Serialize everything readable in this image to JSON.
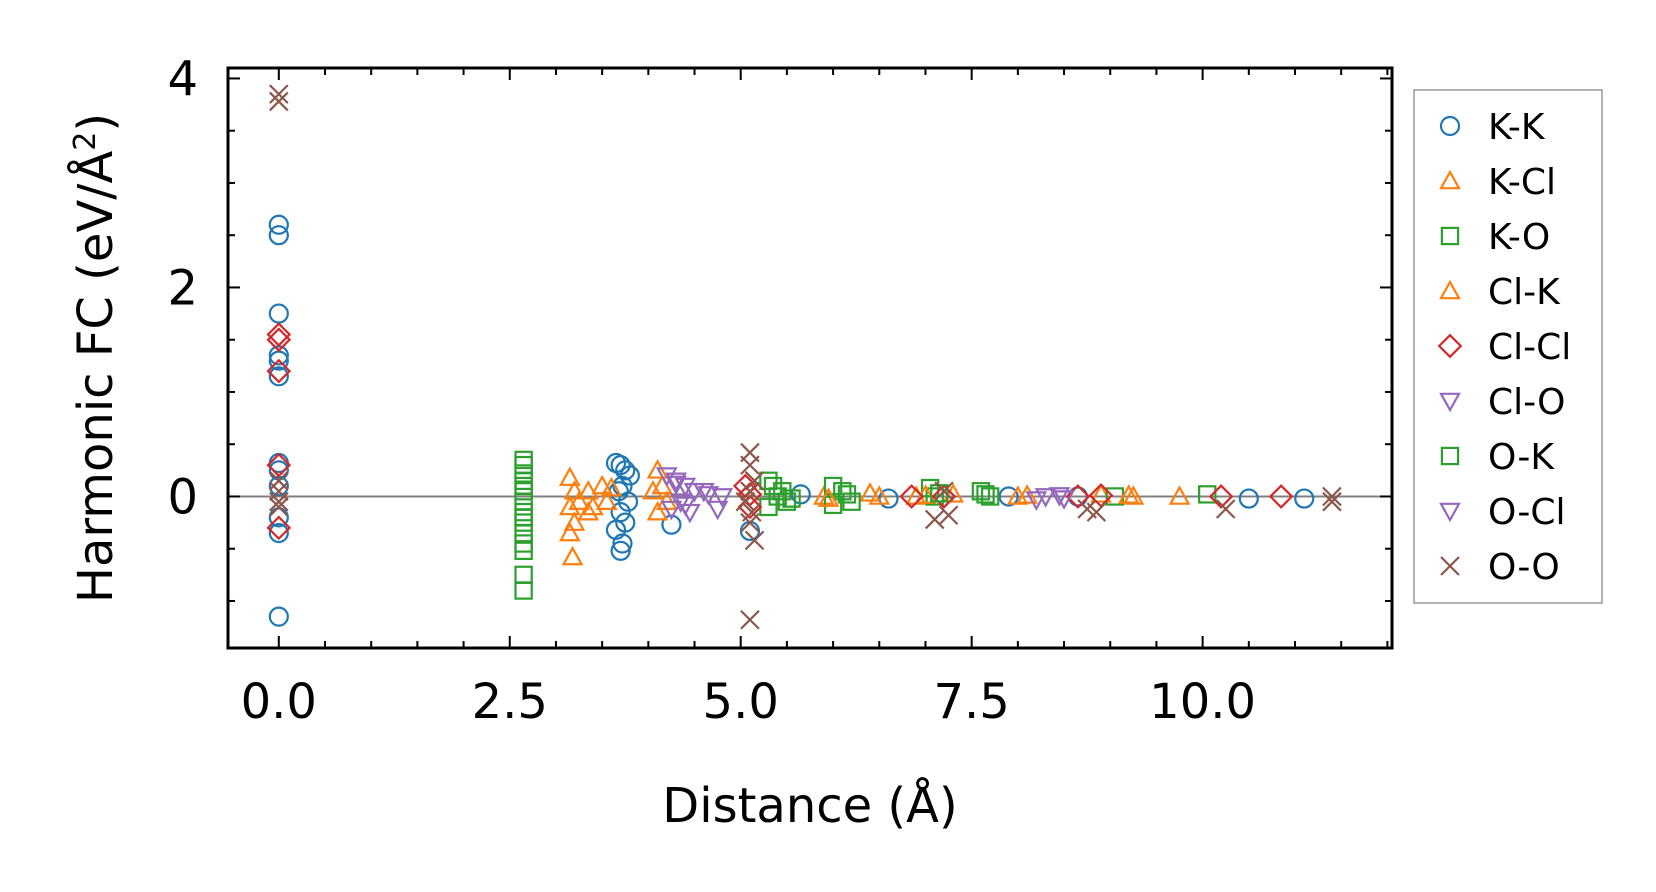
{
  "chart_data": {
    "type": "scatter",
    "title": "",
    "xlabel": "Distance (Å)",
    "ylabel": "Harmonic FC (eV/Å",
    "ylabel_superscript": "2",
    "ylabel_suffix": ")",
    "xlim": [
      -0.55,
      12.05
    ],
    "ylim": [
      -1.45,
      4.1
    ],
    "xticks": [
      0.0,
      2.5,
      5.0,
      7.5,
      10.0
    ],
    "xtick_labels": [
      "0.0",
      "2.5",
      "5.0",
      "7.5",
      "10.0"
    ],
    "yticks": [
      0,
      2,
      4
    ],
    "ytick_labels": [
      "0",
      "2",
      "4"
    ],
    "reference_line_y": 0,
    "legend_position": "right-outside",
    "series": [
      {
        "name": "K-K",
        "marker": "circle",
        "color": "#1f77b4",
        "points": [
          [
            0,
            2.6
          ],
          [
            0,
            2.5
          ],
          [
            0,
            1.75
          ],
          [
            0,
            1.35
          ],
          [
            0,
            1.3
          ],
          [
            0,
            1.15
          ],
          [
            0,
            0.32
          ],
          [
            0,
            0.25
          ],
          [
            0,
            0.1
          ],
          [
            0,
            -0.2
          ],
          [
            0,
            -0.35
          ],
          [
            0,
            -1.15
          ],
          [
            3.65,
            0.32
          ],
          [
            3.7,
            0.3
          ],
          [
            3.75,
            0.25
          ],
          [
            3.8,
            0.2
          ],
          [
            3.72,
            0.1
          ],
          [
            3.68,
            0.05
          ],
          [
            3.78,
            -0.05
          ],
          [
            3.7,
            -0.15
          ],
          [
            3.75,
            -0.25
          ],
          [
            3.65,
            -0.32
          ],
          [
            3.72,
            -0.45
          ],
          [
            3.7,
            -0.52
          ],
          [
            4.25,
            -0.27
          ],
          [
            5.1,
            -0.33
          ],
          [
            5.65,
            0.02
          ],
          [
            6.6,
            -0.02
          ],
          [
            7.9,
            0.0
          ],
          [
            8.65,
            0.0
          ],
          [
            10.5,
            -0.02
          ],
          [
            11.1,
            -0.02
          ]
        ]
      },
      {
        "name": "K-Cl",
        "marker": "triangle-up",
        "color": "#ff7f0e",
        "points": [
          [
            3.15,
            0.18
          ],
          [
            3.2,
            0.05
          ],
          [
            3.15,
            -0.1
          ],
          [
            3.2,
            -0.25
          ],
          [
            3.15,
            -0.35
          ],
          [
            3.18,
            -0.58
          ],
          [
            3.35,
            0.05
          ],
          [
            3.5,
            0.1
          ],
          [
            3.55,
            -0.05
          ],
          [
            3.35,
            -0.15
          ],
          [
            4.1,
            0.25
          ],
          [
            4.15,
            0.1
          ],
          [
            4.2,
            -0.05
          ],
          [
            4.1,
            -0.15
          ],
          [
            5.9,
            0.0
          ],
          [
            6.4,
            0.03
          ],
          [
            6.9,
            0.0
          ],
          [
            7.3,
            0.02
          ],
          [
            8.0,
            0.0
          ],
          [
            8.9,
            0.02
          ],
          [
            9.25,
            0.0
          ],
          [
            9.75,
            0.0
          ]
        ]
      },
      {
        "name": "K-O",
        "marker": "square",
        "color": "#2ca02c",
        "points": [
          [
            2.65,
            0.35
          ],
          [
            2.65,
            0.3
          ],
          [
            2.65,
            0.22
          ],
          [
            2.65,
            0.15
          ],
          [
            2.65,
            0.05
          ],
          [
            2.65,
            -0.05
          ],
          [
            2.65,
            -0.15
          ],
          [
            2.65,
            -0.25
          ],
          [
            2.65,
            -0.35
          ],
          [
            2.65,
            -0.45
          ],
          [
            2.65,
            -0.52
          ],
          [
            2.65,
            -0.75
          ],
          [
            2.65,
            -0.9
          ],
          [
            5.3,
            0.15
          ],
          [
            5.35,
            0.1
          ],
          [
            5.4,
            0.0
          ],
          [
            5.5,
            -0.05
          ],
          [
            5.3,
            -0.1
          ],
          [
            6.0,
            0.1
          ],
          [
            6.1,
            0.05
          ],
          [
            6.2,
            -0.05
          ],
          [
            6.0,
            -0.08
          ],
          [
            7.05,
            0.08
          ],
          [
            7.1,
            0.0
          ],
          [
            7.6,
            0.05
          ],
          [
            7.7,
            0.0
          ],
          [
            9.05,
            0.0
          ],
          [
            10.05,
            0.02
          ]
        ]
      },
      {
        "name": "Cl-K",
        "marker": "triangle-up",
        "color": "#ff7f0e",
        "points": [
          [
            3.25,
            -0.05
          ],
          [
            3.4,
            -0.1
          ],
          [
            3.6,
            0.08
          ],
          [
            4.05,
            0.05
          ],
          [
            5.95,
            -0.02
          ],
          [
            6.5,
            0.0
          ],
          [
            7.0,
            0.01
          ],
          [
            8.1,
            0.01
          ],
          [
            9.2,
            0.01
          ]
        ]
      },
      {
        "name": "Cl-Cl",
        "marker": "diamond",
        "color": "#d62728",
        "points": [
          [
            0,
            1.55
          ],
          [
            0,
            1.5
          ],
          [
            0,
            1.2
          ],
          [
            0,
            0.3
          ],
          [
            0,
            -0.3
          ],
          [
            5.05,
            0.1
          ],
          [
            5.1,
            0.02
          ],
          [
            5.1,
            -0.1
          ],
          [
            6.85,
            0.0
          ],
          [
            7.2,
            0.0
          ],
          [
            8.65,
            0.0
          ],
          [
            8.9,
            0.01
          ],
          [
            10.2,
            0.0
          ],
          [
            10.85,
            0.0
          ]
        ]
      },
      {
        "name": "Cl-O",
        "marker": "triangle-down",
        "color": "#9467bd",
        "points": [
          [
            4.2,
            0.2
          ],
          [
            4.3,
            0.15
          ],
          [
            4.4,
            0.1
          ],
          [
            4.5,
            0.05
          ],
          [
            4.35,
            -0.05
          ],
          [
            4.25,
            -0.12
          ],
          [
            4.45,
            -0.15
          ],
          [
            4.6,
            0.05
          ],
          [
            4.8,
            0.0
          ],
          [
            4.75,
            -0.12
          ],
          [
            8.3,
            0.0
          ],
          [
            8.5,
            -0.02
          ]
        ]
      },
      {
        "name": "O-K",
        "marker": "square",
        "color": "#2ca02c",
        "points": [
          [
            2.65,
            0.1
          ],
          [
            2.65,
            -0.2
          ],
          [
            5.45,
            0.05
          ],
          [
            5.55,
            -0.02
          ],
          [
            6.15,
            0.02
          ],
          [
            7.15,
            0.03
          ],
          [
            7.65,
            0.02
          ]
        ]
      },
      {
        "name": "O-Cl",
        "marker": "triangle-down",
        "color": "#9467bd",
        "points": [
          [
            4.3,
            0.12
          ],
          [
            4.4,
            -0.08
          ],
          [
            4.65,
            0.02
          ],
          [
            8.2,
            -0.03
          ],
          [
            8.45,
            0.01
          ]
        ]
      },
      {
        "name": "O-O",
        "marker": "x",
        "color": "#8c564b",
        "points": [
          [
            0,
            3.85
          ],
          [
            0,
            3.78
          ],
          [
            0,
            0.15
          ],
          [
            0,
            0.05
          ],
          [
            0,
            -0.05
          ],
          [
            0,
            -0.1
          ],
          [
            5.1,
            0.42
          ],
          [
            5.1,
            0.3
          ],
          [
            5.15,
            0.15
          ],
          [
            5.1,
            0.05
          ],
          [
            5.05,
            -0.05
          ],
          [
            5.12,
            -0.15
          ],
          [
            5.1,
            -0.25
          ],
          [
            5.15,
            -0.42
          ],
          [
            5.1,
            -1.18
          ],
          [
            7.1,
            -0.22
          ],
          [
            7.25,
            -0.18
          ],
          [
            7.2,
            0.05
          ],
          [
            8.75,
            -0.12
          ],
          [
            8.85,
            -0.15
          ],
          [
            10.25,
            -0.12
          ],
          [
            11.4,
            -0.05
          ],
          [
            11.4,
            0.0
          ]
        ]
      }
    ]
  }
}
